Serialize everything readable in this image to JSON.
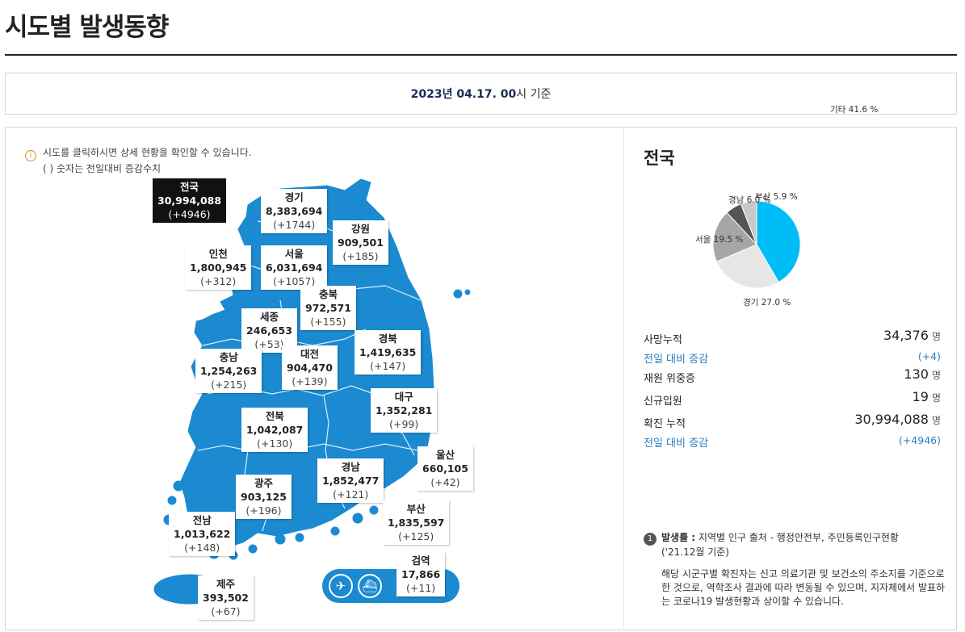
{
  "page": {
    "title": "시도별 발생동향"
  },
  "basis": {
    "date": "2023년 04.17. 00",
    "suffix": "시 기준"
  },
  "notice": {
    "line1": "시도를 클릭하시면 상세 현황을 확인할 수 있습니다.",
    "line2": "( ) 숫자는 전일대비 증감수치"
  },
  "regions": {
    "national": {
      "name": "전국",
      "value": "30,994,088",
      "diff": "(+4946)"
    },
    "gyeonggi": {
      "name": "경기",
      "value": "8,383,694",
      "diff": "(+1744)"
    },
    "gangwon": {
      "name": "강원",
      "value": "909,501",
      "diff": "(+185)"
    },
    "incheon": {
      "name": "인천",
      "value": "1,800,945",
      "diff": "(+312)"
    },
    "seoul": {
      "name": "서울",
      "value": "6,031,694",
      "diff": "(+1057)"
    },
    "chungbuk": {
      "name": "충북",
      "value": "972,571",
      "diff": "(+155)"
    },
    "sejong": {
      "name": "세종",
      "value": "246,653",
      "diff": "(+53)"
    },
    "gyeongbuk": {
      "name": "경북",
      "value": "1,419,635",
      "diff": "(+147)"
    },
    "chungnam": {
      "name": "충남",
      "value": "1,254,263",
      "diff": "(+215)"
    },
    "daejeon": {
      "name": "대전",
      "value": "904,470",
      "diff": "(+139)"
    },
    "daegu": {
      "name": "대구",
      "value": "1,352,281",
      "diff": "(+99)"
    },
    "jeonbuk": {
      "name": "전북",
      "value": "1,042,087",
      "diff": "(+130)"
    },
    "ulsan": {
      "name": "울산",
      "value": "660,105",
      "diff": "(+42)"
    },
    "gyeongnam": {
      "name": "경남",
      "value": "1,852,477",
      "diff": "(+121)"
    },
    "gwangju": {
      "name": "광주",
      "value": "903,125",
      "diff": "(+196)"
    },
    "jeonnam": {
      "name": "전남",
      "value": "1,013,622",
      "diff": "(+148)"
    },
    "busan": {
      "name": "부산",
      "value": "1,835,597",
      "diff": "(+125)"
    },
    "quarantine": {
      "name": "검역",
      "value": "17,866",
      "diff": "(+11)"
    },
    "jeju": {
      "name": "제주",
      "value": "393,502",
      "diff": "(+67)"
    }
  },
  "side": {
    "title": "전국",
    "pie": {
      "slices": [
        {
          "label": "기타 41.6 %",
          "value": 41.6,
          "color": "#00bdf7"
        },
        {
          "label": "경기 27.0 %",
          "value": 27.0,
          "color": "#e6e6e6"
        },
        {
          "label": "서울 19.5 %",
          "value": 19.5,
          "color": "#a6a6a6"
        },
        {
          "label": "경남 6.0 %",
          "value": 6.0,
          "color": "#555555"
        },
        {
          "label": "부산 5.9 %",
          "value": 5.9,
          "color": "#c8c8c8"
        }
      ]
    },
    "stats": {
      "deaths_label": "사망누적",
      "deaths_value": "34,376",
      "deaths_unit": "명",
      "deaths_diff_label": "전일 대비 증감",
      "deaths_diff": "(+4)",
      "severe_label": "재원 위중증",
      "severe_value": "130",
      "severe_unit": "명",
      "admit_label": "신규입원",
      "admit_value": "19",
      "admit_unit": "명",
      "cases_label": "확진 누적",
      "cases_value": "30,994,088",
      "cases_unit": "명",
      "cases_diff_label": "전일 대비 증감",
      "cases_diff": "(+4946)"
    },
    "footnote": {
      "num": "1",
      "bold": "발생률 :",
      "text": " 지역별 인구 출처 - 행정안전부, 주민등록인구현황",
      "text2": "('21.12월 기준)",
      "desc": "해당 시군구별 확진자는 신고 의료기관 및 보건소의 주소지를 기준으로 한 것으로, 역학조사 결과에 따라 변동될 수 있으며, 지자체에서 발표하는 코로나19 발생현황과 상이할 수 있습니다."
    }
  }
}
